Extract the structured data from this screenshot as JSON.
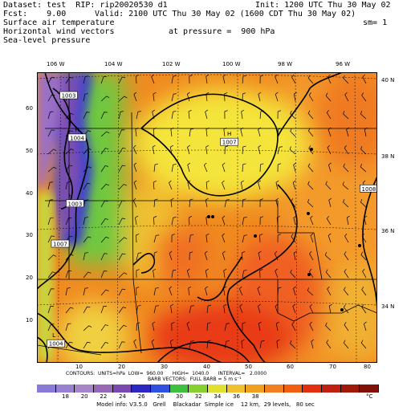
{
  "header": {
    "dataset": "Dataset: test  RIP: rip20020530 d1",
    "init": "Init: 1200 UTC Thu 30 May 02",
    "fcst": "Fcst:    9.00",
    "valid": "Valid: 2100 UTC Thu 30 May 02 (1600 CDT Thu 30 May 02)",
    "line3": "Surface air temperature",
    "sm": "sm= 1",
    "line4": "Horizontal wind vectors",
    "pressure": "at pressure =  900 hPa",
    "line5": "Sea-level pressure"
  },
  "map": {
    "lon_labels": [
      "106 W",
      "104 W",
      "102 W",
      "100 W",
      "98 W",
      "96 W"
    ],
    "lat_labels_right": [
      "40 N",
      "38 N",
      "36 N",
      "34 N"
    ],
    "y_ticks": [
      "60",
      "50",
      "40",
      "30",
      "20",
      "10"
    ],
    "x_ticks": [
      "10",
      "20",
      "30",
      "40",
      "50",
      "60",
      "70",
      "80"
    ],
    "contour_labels": [
      {
        "label": "1003",
        "gx": 7.5,
        "gy": 63
      },
      {
        "label": "H",
        "gx": 9.5,
        "gy": 55
      },
      {
        "label": "1004",
        "gx": 9.5,
        "gy": 53
      },
      {
        "label": "H",
        "gx": 8,
        "gy": 39.5
      },
      {
        "label": "1003",
        "gx": 9,
        "gy": 37.5
      },
      {
        "label": "1007",
        "gx": 5.5,
        "gy": 28
      },
      {
        "label": "H",
        "gx": 45.5,
        "gy": 54
      },
      {
        "label": "1007",
        "gx": 45.5,
        "gy": 52
      },
      {
        "label": "1008",
        "gx": 78.5,
        "gy": 41
      },
      {
        "label": "L",
        "gx": 4,
        "gy": 6.5
      },
      {
        "label": "1004",
        "gx": 4.5,
        "gy": 4.5
      }
    ],
    "colors": {
      "cold": "#7b4fb0",
      "blue": "#3038c8",
      "green": "#40b050",
      "yellow": "#f0e040",
      "orange": "#f08a20",
      "red": "#e03020"
    }
  },
  "contour_info": "CONTOURS:  UNITS=hPa  LOW=  960.00      HIGH=  1040.0      INTERVAL=   2.0000",
  "barb_info": "BARB VECTORS:  FULL BARB = 5 m s⁻¹",
  "colorbar": {
    "labels": [
      "18",
      "20",
      "22",
      "24",
      "26",
      "28",
      "30",
      "32",
      "34",
      "36",
      "38",
      "°C"
    ],
    "colors": [
      "#8a7ad8",
      "#9a80d0",
      "#a884c8",
      "#9868b8",
      "#7a48b0",
      "#2a28c0",
      "#3050e0",
      "#40c040",
      "#88d030",
      "#e0e030",
      "#f0c030",
      "#f0a020",
      "#f08020",
      "#f06010",
      "#e03010",
      "#c02010",
      "#a01808",
      "#801008"
    ]
  },
  "footer": "Model info: V3.5.0   Grell    Blackadar  Simple ice    12 km,  29 levels,   80 sec"
}
